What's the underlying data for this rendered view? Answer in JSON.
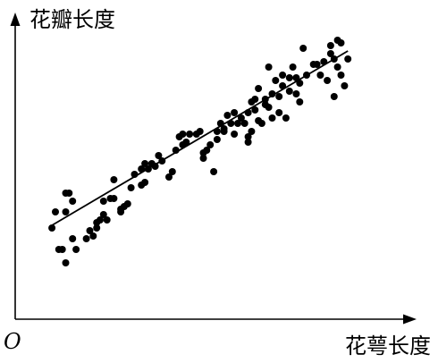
{
  "chart_data": {
    "type": "scatter",
    "title": "",
    "xlabel": "花萼长度",
    "ylabel": "花瓣长度",
    "origin_label": "O",
    "grid": false,
    "legend": "none",
    "colors": {
      "points": "#000000",
      "fit_line": "#000000",
      "axes": "#000000"
    },
    "xlim": [
      0,
      100
    ],
    "ylim": [
      0,
      100
    ],
    "series": [
      {
        "points": [
          [
            6,
            27
          ],
          [
            7,
            33
          ],
          [
            8,
            19
          ],
          [
            9,
            19
          ],
          [
            10,
            14
          ],
          [
            10,
            40
          ],
          [
            10,
            33
          ],
          [
            11,
            40
          ],
          [
            12,
            23
          ],
          [
            12,
            37
          ],
          [
            13,
            19
          ],
          [
            16,
            23
          ],
          [
            17,
            26
          ],
          [
            18,
            24
          ],
          [
            19,
            27
          ],
          [
            19,
            29
          ],
          [
            20,
            30
          ],
          [
            21,
            37
          ],
          [
            21,
            32
          ],
          [
            22,
            30
          ],
          [
            23,
            38
          ],
          [
            24,
            45
          ],
          [
            24,
            38
          ],
          [
            26,
            33
          ],
          [
            26,
            34
          ],
          [
            27,
            35
          ],
          [
            28,
            36
          ],
          [
            29,
            42
          ],
          [
            30,
            47
          ],
          [
            32,
            43
          ],
          [
            32,
            49
          ],
          [
            33,
            51
          ],
          [
            33,
            44
          ],
          [
            34,
            49
          ],
          [
            35,
            51
          ],
          [
            36,
            50
          ],
          [
            37,
            54
          ],
          [
            38,
            52
          ],
          [
            40,
            46
          ],
          [
            41,
            48
          ],
          [
            42,
            56
          ],
          [
            43,
            61
          ],
          [
            44,
            58
          ],
          [
            44,
            62
          ],
          [
            45,
            59
          ],
          [
            46,
            62
          ],
          [
            48,
            62
          ],
          [
            49,
            63
          ],
          [
            50,
            53
          ],
          [
            50,
            55
          ],
          [
            51,
            56
          ],
          [
            52,
            58
          ],
          [
            53,
            48
          ],
          [
            54,
            60
          ],
          [
            54,
            63
          ],
          [
            55,
            66
          ],
          [
            56,
            64
          ],
          [
            56,
            63
          ],
          [
            57,
            69
          ],
          [
            58,
            66
          ],
          [
            59,
            62
          ],
          [
            59,
            70
          ],
          [
            60,
            66
          ],
          [
            61,
            68
          ],
          [
            62,
            66
          ],
          [
            63,
            70
          ],
          [
            63,
            59
          ],
          [
            63,
            61
          ],
          [
            64,
            63
          ],
          [
            64,
            74
          ],
          [
            65,
            75
          ],
          [
            65,
            71
          ],
          [
            66,
            79
          ],
          [
            66,
            67
          ],
          [
            67,
            66
          ],
          [
            68,
            73
          ],
          [
            68,
            75
          ],
          [
            69,
            87
          ],
          [
            69,
            72
          ],
          [
            70,
            77
          ],
          [
            70,
            68
          ],
          [
            71,
            82
          ],
          [
            72,
            76
          ],
          [
            72,
            70
          ],
          [
            73,
            84
          ],
          [
            73,
            80
          ],
          [
            74,
            68
          ],
          [
            75,
            78
          ],
          [
            75,
            83
          ],
          [
            76,
            87
          ],
          [
            77,
            77
          ],
          [
            77,
            83
          ],
          [
            78,
            81
          ],
          [
            78,
            74
          ],
          [
            79,
            94
          ],
          [
            80,
            84
          ],
          [
            82,
            88
          ],
          [
            83,
            88
          ],
          [
            84,
            84
          ],
          [
            85,
            89
          ],
          [
            86,
            82
          ],
          [
            87,
            95
          ],
          [
            87,
            92
          ],
          [
            88,
            76
          ],
          [
            88,
            90
          ],
          [
            89,
            87
          ],
          [
            89,
            97
          ],
          [
            90,
            84
          ],
          [
            90,
            96
          ],
          [
            91,
            80
          ],
          [
            92,
            90
          ]
        ]
      }
    ],
    "fit_line": {
      "x": [
        6,
        92
      ],
      "y": [
        28,
        93
      ]
    }
  }
}
